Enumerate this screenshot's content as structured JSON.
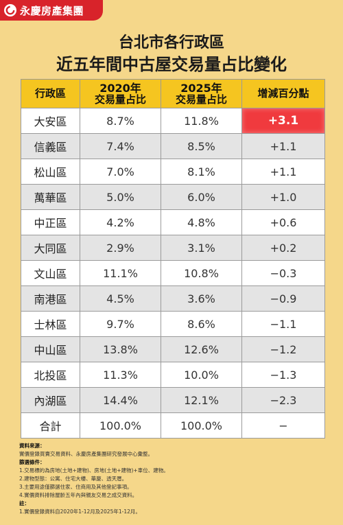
{
  "brand": {
    "name": "永慶房產集團",
    "color": "#d8232a"
  },
  "title": {
    "line1": "台北市各行政區",
    "line2": "近五年間中古屋交易量占比變化"
  },
  "table": {
    "headers": {
      "district": "行政區",
      "y2020_line1": "2020年",
      "y2020_line2": "交易量占比",
      "y2025_line1": "2025年",
      "y2025_line2": "交易量占比",
      "change": "增減百分點"
    },
    "rows": [
      {
        "district": "大安區",
        "y2020": "8.7%",
        "y2025": "11.8%",
        "change": "+3.1"
      },
      {
        "district": "信義區",
        "y2020": "7.4%",
        "y2025": "8.5%",
        "change": "+1.1"
      },
      {
        "district": "松山區",
        "y2020": "7.0%",
        "y2025": "8.1%",
        "change": "+1.1"
      },
      {
        "district": "萬華區",
        "y2020": "5.0%",
        "y2025": "6.0%",
        "change": "+1.0"
      },
      {
        "district": "中正區",
        "y2020": "4.2%",
        "y2025": "4.8%",
        "change": "+0.6"
      },
      {
        "district": "大同區",
        "y2020": "2.9%",
        "y2025": "3.1%",
        "change": "+0.2"
      },
      {
        "district": "文山區",
        "y2020": "11.1%",
        "y2025": "10.8%",
        "change": "−0.3"
      },
      {
        "district": "南港區",
        "y2020": "4.5%",
        "y2025": "3.6%",
        "change": "−0.9"
      },
      {
        "district": "士林區",
        "y2020": "9.7%",
        "y2025": "8.6%",
        "change": "−1.1"
      },
      {
        "district": "中山區",
        "y2020": "13.8%",
        "y2025": "12.6%",
        "change": "−1.2"
      },
      {
        "district": "北投區",
        "y2020": "11.3%",
        "y2025": "10.0%",
        "change": "−1.3"
      },
      {
        "district": "內湖區",
        "y2020": "14.4%",
        "y2025": "12.1%",
        "change": "−2.3"
      }
    ],
    "total": {
      "district": "合計",
      "y2020": "100.0%",
      "y2025": "100.0%",
      "change": "−"
    }
  },
  "notes": {
    "source_label": "資料來源：",
    "source_text": "實價登錄買賣交易資料、永慶房產集團研究發展中心彙整。",
    "filter_label": "篩選條件：",
    "filters": [
      "1.交易標的為房地(土地+建物)、房地(土地+建物)+車位、建物。",
      "2.建物型態：公寓、住宅大樓、華廈、透天厝。",
      "3.主要用途僅篩選住家、住商用及其他登記事項。",
      "4.實價資料排除屋齡五年內與親友交易之成交資料。"
    ],
    "note_label": "註：",
    "note_text": "1.實價登錄資料自2020年1-12月及2025年1-12月。"
  }
}
